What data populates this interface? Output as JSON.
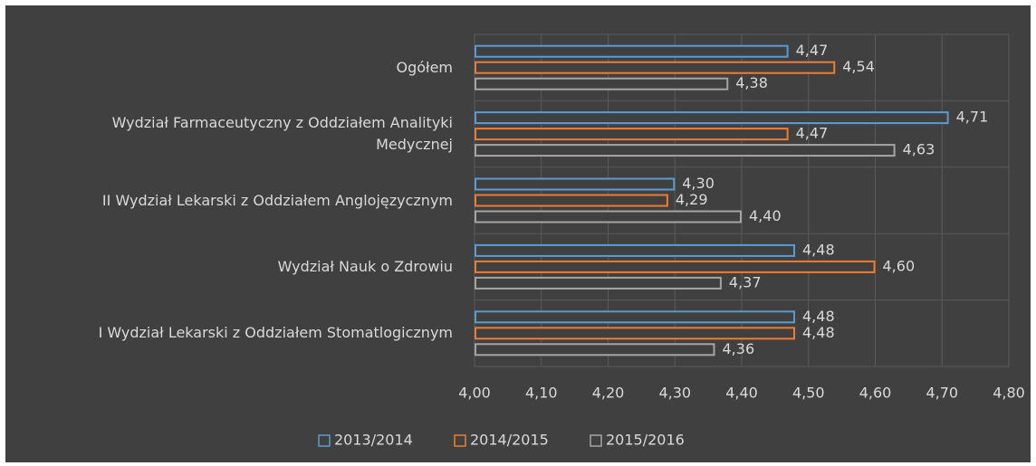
{
  "chart_data": {
    "type": "bar",
    "orientation": "horizontal",
    "categories": [
      "Ogółem",
      "Wydział Farmaceutyczny z Oddziałem Analityki Medycznej",
      "II Wydział Lekarski z Oddziałem Anglojęzycznym",
      "Wydział Nauk o Zdrowiu",
      "I Wydział Lekarski z Oddziałem Stomatlogicznym"
    ],
    "series": [
      {
        "name": "2013/2014",
        "color": "#5b9bd5",
        "values": [
          4.47,
          4.71,
          4.3,
          4.48,
          4.48
        ],
        "value_labels": [
          "4,47",
          "4,71",
          "4,30",
          "4,48",
          "4,48"
        ]
      },
      {
        "name": "2014/2015",
        "color": "#ed7d31",
        "values": [
          4.54,
          4.47,
          4.29,
          4.6,
          4.48
        ],
        "value_labels": [
          "4,54",
          "4,47",
          "4,29",
          "4,60",
          "4,48"
        ]
      },
      {
        "name": "2015/2016",
        "color": "#a5a5a5",
        "values": [
          4.38,
          4.63,
          4.4,
          4.37,
          4.36
        ],
        "value_labels": [
          "4,38",
          "4,63",
          "4,40",
          "4,37",
          "4,36"
        ]
      }
    ],
    "xlim": [
      4.0,
      4.8
    ],
    "xticks": [
      {
        "value": 4.0,
        "label": "4,00"
      },
      {
        "value": 4.1,
        "label": "4,10"
      },
      {
        "value": 4.2,
        "label": "4,20"
      },
      {
        "value": 4.3,
        "label": "4,30"
      },
      {
        "value": 4.4,
        "label": "4,40"
      },
      {
        "value": 4.5,
        "label": "4,50"
      },
      {
        "value": 4.6,
        "label": "4,60"
      },
      {
        "value": 4.7,
        "label": "4,70"
      },
      {
        "value": 4.8,
        "label": "4,80"
      }
    ],
    "grid": true,
    "legend": "bottom"
  }
}
